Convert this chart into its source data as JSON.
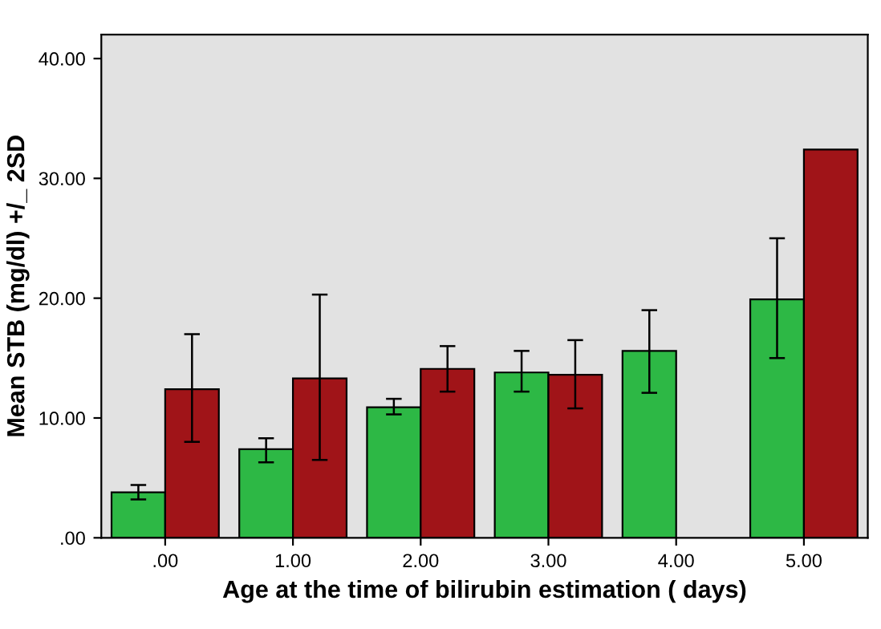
{
  "chart_data": {
    "type": "bar",
    "xlabel": "Age at the time of bilirubin estimation ( days)",
    "ylabel": "Mean STB (mg/dl) +/_ 2SD",
    "categories": [
      ".00",
      "1.00",
      "2.00",
      "3.00",
      "4.00",
      "5.00"
    ],
    "series": [
      {
        "color": "#2db845",
        "values": [
          3.8,
          7.4,
          10.9,
          13.8,
          15.6,
          19.9
        ],
        "errors": [
          [
            3.2,
            4.4
          ],
          [
            6.3,
            8.3
          ],
          [
            10.3,
            11.6
          ],
          [
            12.2,
            15.6
          ],
          [
            12.1,
            19.0
          ],
          [
            15.0,
            25.0
          ]
        ]
      },
      {
        "color": "#a01418",
        "values": [
          12.4,
          13.3,
          14.1,
          13.6,
          null,
          32.4
        ],
        "errors": [
          [
            8.0,
            17.0
          ],
          [
            6.5,
            20.3
          ],
          [
            12.2,
            16.0
          ],
          [
            10.8,
            16.5
          ],
          null,
          null
        ]
      }
    ],
    "ylim": [
      0,
      42
    ],
    "yticks": [
      {
        "value": 0,
        "label": ".00"
      },
      {
        "value": 10,
        "label": "10.00"
      },
      {
        "value": 20,
        "label": "20.00"
      },
      {
        "value": 30,
        "label": "30.00"
      },
      {
        "value": 40,
        "label": "40.00"
      }
    ],
    "grid": false
  }
}
